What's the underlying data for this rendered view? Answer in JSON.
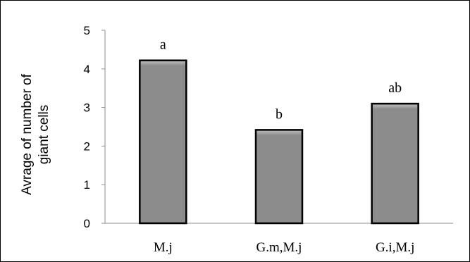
{
  "chart_data": {
    "type": "bar",
    "categories": [
      "M.j",
      "G.m,M.j",
      "G.i,M.j"
    ],
    "values": [
      4.22,
      2.42,
      3.1
    ],
    "annotations": [
      "a",
      "b",
      "ab"
    ],
    "title": "",
    "xlabel": "",
    "ylabel_lines": [
      "Avrage of number of",
      "giant cells"
    ],
    "ylim": [
      0,
      5
    ],
    "yticks": [
      "0",
      "1",
      "2",
      "3",
      "4",
      "5"
    ],
    "grid": false,
    "legend": "none",
    "colors": {
      "bar_fill": "#8c8c8c",
      "bar_top": "#b8b8b8",
      "bar_edge": "#000000",
      "axis": "#8f8f8f"
    }
  }
}
